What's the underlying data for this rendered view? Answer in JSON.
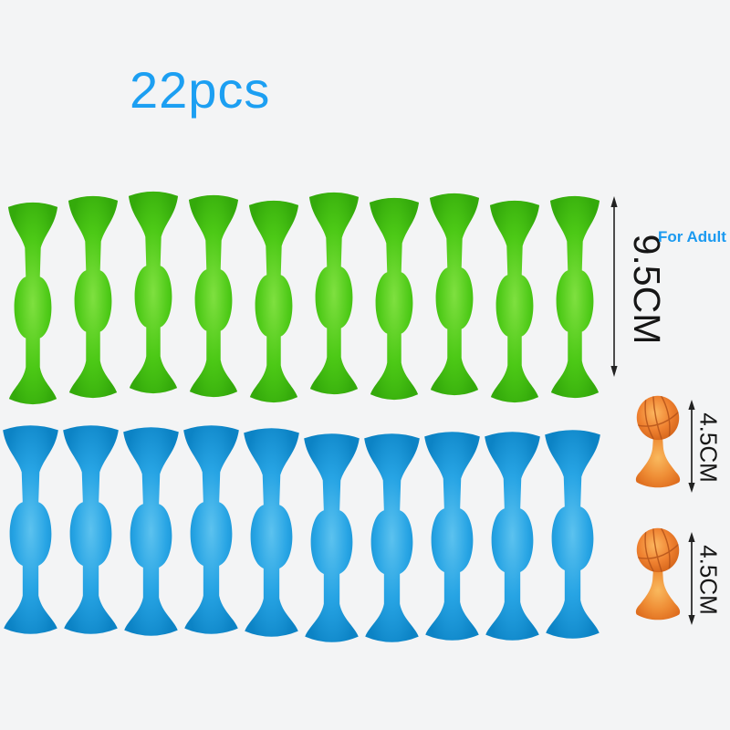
{
  "background_color": "#f3f4f5",
  "product_image": {
    "count_label": "22pcs",
    "count_label_color": "#1c9ff2",
    "green_row": {
      "item": "green-suction-dart",
      "count": 10,
      "color": "#45c414"
    },
    "blue_row": {
      "item": "blue-suction-dart",
      "count": 10,
      "color": "#23a2e2"
    },
    "adult_dart": {
      "height_label": "9.5CM",
      "audience_label": "For Adult",
      "audience_label_color": "#1b9af0"
    },
    "basketball_targets": [
      {
        "height_label": "4.5CM",
        "color": "#ee8130"
      },
      {
        "height_label": "4.5CM",
        "color": "#ee8130"
      }
    ],
    "dimension_text_color": "#161616",
    "icons": {
      "measure_arrow": "vertical-double-arrow"
    }
  }
}
